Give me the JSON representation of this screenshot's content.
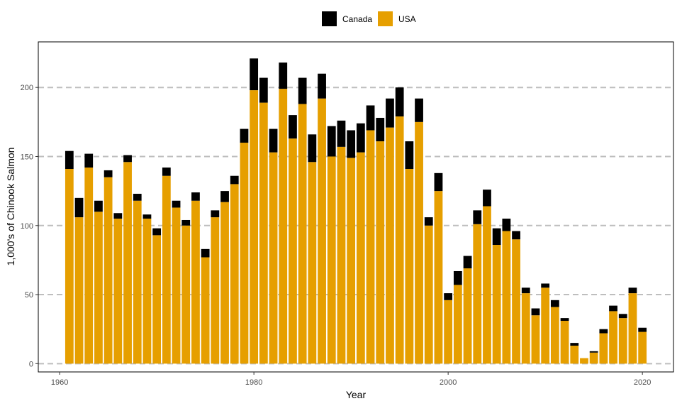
{
  "chart_data": {
    "type": "bar",
    "stacked": true,
    "title": "",
    "xlabel": "Year",
    "ylabel": "1,000's of Chinook Salmon",
    "xlim": [
      1957.8,
      2023.2
    ],
    "ylim": [
      -6,
      233
    ],
    "x_ticks": [
      1960,
      1980,
      2000,
      2020
    ],
    "y_ticks": [
      0,
      50,
      100,
      150,
      200
    ],
    "grid": "horizontal-dashed",
    "legend_position": "top",
    "legend": [
      {
        "name": "Canada",
        "color": "#000000"
      },
      {
        "name": "USA",
        "color": "#E69F00"
      }
    ],
    "x": [
      1961,
      1962,
      1963,
      1964,
      1965,
      1966,
      1967,
      1968,
      1969,
      1970,
      1971,
      1972,
      1973,
      1974,
      1975,
      1976,
      1977,
      1978,
      1979,
      1980,
      1981,
      1982,
      1983,
      1984,
      1985,
      1986,
      1987,
      1988,
      1989,
      1990,
      1991,
      1992,
      1993,
      1994,
      1995,
      1996,
      1997,
      1998,
      1999,
      2000,
      2001,
      2002,
      2003,
      2004,
      2005,
      2006,
      2007,
      2008,
      2009,
      2010,
      2011,
      2012,
      2013,
      2014,
      2015,
      2016,
      2017,
      2018,
      2019,
      2020
    ],
    "series": [
      {
        "name": "USA",
        "color": "#E69F00",
        "values": [
          141,
          106,
          142,
          110,
          135,
          105,
          146,
          118,
          105,
          93,
          136,
          113,
          100,
          118,
          77,
          106,
          117,
          130,
          160,
          198,
          189,
          153,
          199,
          163,
          188,
          146,
          192,
          150,
          157,
          149,
          153,
          169,
          161,
          171,
          179,
          141,
          175,
          100,
          125,
          46,
          57,
          69,
          101,
          114,
          86,
          96,
          90,
          51,
          35,
          55,
          41,
          31,
          13,
          4,
          8,
          22,
          38,
          33,
          51,
          23
        ]
      },
      {
        "name": "Canada",
        "color": "#000000",
        "values": [
          13,
          14,
          10,
          8,
          5,
          4,
          5,
          5,
          3,
          5,
          6,
          5,
          4,
          6,
          6,
          5,
          8,
          6,
          10,
          23,
          18,
          17,
          19,
          17,
          19,
          20,
          18,
          22,
          19,
          20,
          21,
          18,
          17,
          21,
          21,
          20,
          17,
          6,
          13,
          5,
          10,
          9,
          10,
          12,
          12,
          9,
          6,
          4,
          5,
          3,
          5,
          2,
          2,
          0,
          1,
          3,
          4,
          3,
          4,
          3
        ]
      }
    ]
  }
}
